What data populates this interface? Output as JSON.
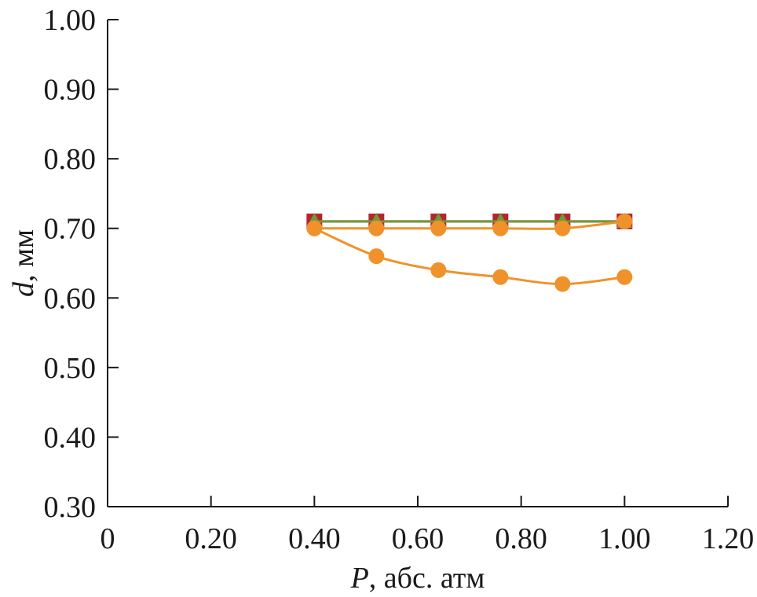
{
  "chart_data": {
    "type": "line",
    "title": "",
    "xlabel_var": "P",
    "xlabel_rest": ", абс. атм",
    "ylabel_var": "d",
    "ylabel_rest": ", мм",
    "xlim": [
      0,
      1.2
    ],
    "ylim": [
      0.3,
      1.0
    ],
    "x_ticks": [
      0,
      0.2,
      0.4,
      0.6,
      0.8,
      1.0,
      1.2
    ],
    "x_tick_labels": [
      "0",
      "0.20",
      "0.40",
      "0.60",
      "0.80",
      "1.00",
      "1.20"
    ],
    "y_ticks": [
      0.3,
      0.4,
      0.5,
      0.6,
      0.7,
      0.8,
      0.9,
      1.0
    ],
    "y_tick_labels": [
      "0.30",
      "0.40",
      "0.50",
      "0.60",
      "0.70",
      "0.80",
      "0.90",
      "1.00"
    ],
    "grid": false,
    "legend": "none",
    "series": [
      {
        "marker": "square",
        "color": "#b5262c",
        "line_color": "#b5262c",
        "x": [
          0.4,
          0.52,
          0.64,
          0.76,
          0.88,
          1.0
        ],
        "y": [
          0.71,
          0.71,
          0.71,
          0.71,
          0.71,
          0.71
        ]
      },
      {
        "marker": "triangle",
        "color": "#6f9a3a",
        "line_color": "#6f9a3a",
        "x": [
          0.4,
          0.52,
          0.64,
          0.76,
          0.88,
          1.0
        ],
        "y": [
          0.71,
          0.71,
          0.71,
          0.71,
          0.71,
          0.71
        ]
      },
      {
        "marker": "circle",
        "color": "#f0922b",
        "line_color": "#f0922b",
        "x": [
          0.4,
          0.52,
          0.64,
          0.76,
          0.88,
          1.0
        ],
        "y": [
          0.7,
          0.7,
          0.7,
          0.7,
          0.7,
          0.71
        ]
      },
      {
        "marker": "circle",
        "color": "#f0922b",
        "line_color": "#f0922b",
        "x": [
          0.4,
          0.52,
          0.64,
          0.76,
          0.88,
          1.0
        ],
        "y": [
          0.7,
          0.66,
          0.64,
          0.63,
          0.62,
          0.63
        ]
      }
    ]
  }
}
